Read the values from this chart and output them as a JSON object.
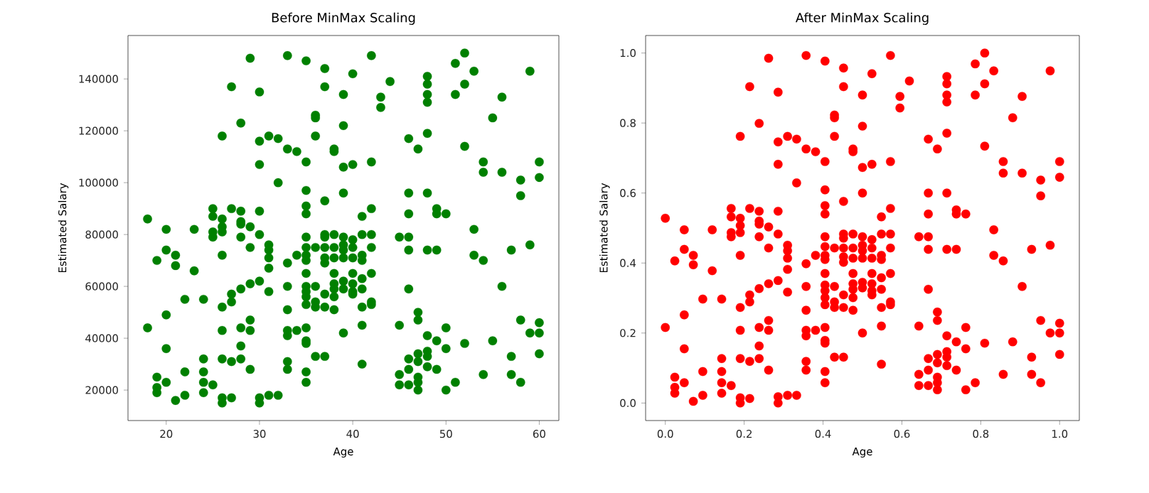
{
  "chart_data": [
    {
      "type": "scatter",
      "title": "Before MinMax Scaling",
      "xlabel": "Age",
      "ylabel": "Estimated Salary",
      "xlim": [
        15.9,
        62.1
      ],
      "ylim": [
        8250,
        156750
      ],
      "xticks": [
        20,
        30,
        40,
        50,
        60
      ],
      "yticks": [
        20000,
        40000,
        60000,
        80000,
        100000,
        120000,
        140000
      ],
      "marker": "circle",
      "series": [
        {
          "color": "#008000",
          "x": [
            18,
            18,
            19,
            19,
            19,
            19,
            20,
            20,
            20,
            20,
            20,
            21,
            21,
            21,
            22,
            22,
            22,
            23,
            23,
            24,
            24,
            24,
            24,
            24,
            25,
            25,
            25,
            25,
            25,
            26,
            26,
            26,
            26,
            26,
            26,
            26,
            26,
            26,
            26,
            27,
            27,
            27,
            27,
            27,
            27,
            28,
            28,
            28,
            28,
            28,
            28,
            28,
            28,
            28,
            29,
            29,
            29,
            29,
            29,
            29,
            29,
            30,
            30,
            30,
            30,
            30,
            30,
            30,
            30,
            31,
            31,
            31,
            31,
            31,
            31,
            31,
            32,
            32,
            32,
            33,
            33,
            33,
            33,
            33,
            33,
            33,
            33,
            33,
            34,
            34,
            34,
            35,
            35,
            35,
            35,
            35,
            35,
            35,
            35,
            35,
            35,
            35,
            35,
            35,
            35,
            35,
            35,
            35,
            35,
            35,
            36,
            36,
            36,
            36,
            36,
            36,
            36,
            36,
            37,
            37,
            37,
            37,
            37,
            37,
            37,
            37,
            37,
            37,
            37,
            38,
            38,
            38,
            38,
            38,
            38,
            38,
            38,
            38,
            38,
            39,
            39,
            39,
            39,
            39,
            39,
            39,
            39,
            39,
            39,
            39,
            40,
            40,
            40,
            40,
            40,
            40,
            40,
            40,
            40,
            41,
            41,
            41,
            41,
            41,
            41,
            41,
            41,
            41,
            42,
            42,
            42,
            42,
            42,
            42,
            42,
            42,
            43,
            43,
            44,
            45,
            45,
            45,
            45,
            46,
            46,
            46,
            46,
            46,
            46,
            46,
            46,
            46,
            47,
            47,
            47,
            47,
            47,
            47,
            47,
            47,
            48,
            48,
            48,
            48,
            48,
            48,
            48,
            48,
            48,
            48,
            48,
            49,
            49,
            49,
            49,
            49,
            50,
            50,
            50,
            50,
            51,
            51,
            51,
            52,
            52,
            52,
            52,
            53,
            53,
            53,
            54,
            54,
            54,
            54,
            55,
            55,
            56,
            56,
            56,
            57,
            57,
            57,
            58,
            58,
            58,
            58,
            59,
            59,
            59,
            60,
            60,
            60,
            60,
            60
          ],
          "values": [
            86000,
            44000,
            70000,
            25000,
            21000,
            19000,
            82000,
            74000,
            49000,
            36000,
            23000,
            72000,
            68000,
            16000,
            55000,
            27000,
            18000,
            82000,
            66000,
            55000,
            32000,
            27000,
            23000,
            19000,
            90000,
            87000,
            81000,
            79000,
            22000,
            118000,
            86000,
            83000,
            81000,
            72000,
            52000,
            43000,
            32000,
            17000,
            15000,
            137000,
            90000,
            57000,
            54000,
            31000,
            17000,
            123000,
            89000,
            85000,
            84000,
            79000,
            59000,
            44000,
            37000,
            32000,
            148000,
            83000,
            75000,
            61000,
            47000,
            43000,
            28000,
            135000,
            116000,
            107000,
            89000,
            80000,
            62000,
            17000,
            15000,
            118000,
            76000,
            74000,
            71000,
            67000,
            58000,
            18000,
            117000,
            100000,
            18000,
            149000,
            113000,
            69000,
            60000,
            51000,
            43000,
            41000,
            31000,
            28000,
            112000,
            72000,
            43000,
            147000,
            108000,
            97000,
            91000,
            88000,
            79000,
            75000,
            72000,
            70000,
            65000,
            60000,
            58000,
            56000,
            53000,
            44000,
            39000,
            38000,
            27000,
            23000,
            126000,
            125000,
            118000,
            75000,
            60000,
            54000,
            52000,
            33000,
            144000,
            137000,
            93000,
            80000,
            79000,
            75000,
            71000,
            69000,
            57000,
            52000,
            33000,
            113000,
            112000,
            80000,
            75000,
            71000,
            65000,
            61000,
            59000,
            56000,
            51000,
            134000,
            122000,
            106000,
            96000,
            79000,
            76000,
            74000,
            71000,
            62000,
            59000,
            42000,
            142000,
            107000,
            78000,
            75000,
            71000,
            65000,
            61000,
            58000,
            57000,
            87000,
            80000,
            72000,
            70000,
            63000,
            59000,
            52000,
            45000,
            30000,
            149000,
            108000,
            90000,
            80000,
            75000,
            65000,
            54000,
            53000,
            133000,
            129000,
            139000,
            79000,
            45000,
            26000,
            22000,
            117000,
            96000,
            88000,
            79000,
            74000,
            59000,
            32000,
            28000,
            22000,
            113000,
            50000,
            47000,
            34000,
            31000,
            25000,
            23000,
            20000,
            141000,
            138000,
            134000,
            131000,
            119000,
            96000,
            74000,
            41000,
            35000,
            33000,
            29000,
            90000,
            88000,
            74000,
            39000,
            28000,
            88000,
            44000,
            36000,
            20000,
            146000,
            134000,
            23000,
            150000,
            138000,
            114000,
            38000,
            143000,
            82000,
            72000,
            108000,
            104000,
            70000,
            26000,
            125000,
            39000,
            133000,
            104000,
            60000,
            74000,
            33000,
            26000,
            101000,
            95000,
            47000,
            23000,
            143000,
            76000,
            42000,
            108000,
            102000,
            46000,
            42000,
            34000
          ]
        }
      ]
    },
    {
      "type": "scatter",
      "title": "After MinMax Scaling",
      "xlabel": "Age",
      "ylabel": "Estimated Salary",
      "xlim": [
        -0.05,
        1.05
      ],
      "ylim": [
        -0.05,
        1.05
      ],
      "xticks": [
        {
          "value": 0,
          "label": "0.0"
        },
        {
          "value": 0.2,
          "label": "0.2"
        },
        {
          "value": 0.4,
          "label": "0.4"
        },
        {
          "value": 0.6,
          "label": "0.6"
        },
        {
          "value": 0.8,
          "label": "0.8"
        },
        {
          "value": 1,
          "label": "1.0"
        }
      ],
      "yticks": [
        {
          "value": 0,
          "label": "0.0"
        },
        {
          "value": 0.2,
          "label": "0.2"
        },
        {
          "value": 0.4,
          "label": "0.4"
        },
        {
          "value": 0.6,
          "label": "0.6"
        },
        {
          "value": 0.8,
          "label": "0.8"
        },
        {
          "value": 1,
          "label": "1.0"
        }
      ],
      "marker": "circle",
      "series": [
        {
          "color": "#ff0000",
          "x": [
            0,
            0,
            0.024,
            0.024,
            0.024,
            0.024,
            0.048,
            0.048,
            0.048,
            0.048,
            0.048,
            0.071,
            0.071,
            0.071,
            0.095,
            0.095,
            0.095,
            0.119,
            0.119,
            0.143,
            0.143,
            0.143,
            0.143,
            0.143,
            0.167,
            0.167,
            0.167,
            0.167,
            0.167,
            0.19,
            0.19,
            0.19,
            0.19,
            0.19,
            0.19,
            0.19,
            0.19,
            0.19,
            0.19,
            0.214,
            0.214,
            0.214,
            0.214,
            0.214,
            0.214,
            0.238,
            0.238,
            0.238,
            0.238,
            0.238,
            0.238,
            0.238,
            0.238,
            0.238,
            0.262,
            0.262,
            0.262,
            0.262,
            0.262,
            0.262,
            0.262,
            0.286,
            0.286,
            0.286,
            0.286,
            0.286,
            0.286,
            0.286,
            0.286,
            0.31,
            0.31,
            0.31,
            0.31,
            0.31,
            0.31,
            0.31,
            0.333,
            0.333,
            0.333,
            0.357,
            0.357,
            0.357,
            0.357,
            0.357,
            0.357,
            0.357,
            0.357,
            0.357,
            0.381,
            0.381,
            0.381,
            0.405,
            0.405,
            0.405,
            0.405,
            0.405,
            0.405,
            0.405,
            0.405,
            0.405,
            0.405,
            0.405,
            0.405,
            0.405,
            0.405,
            0.405,
            0.405,
            0.405,
            0.405,
            0.405,
            0.429,
            0.429,
            0.429,
            0.429,
            0.429,
            0.429,
            0.429,
            0.429,
            0.452,
            0.452,
            0.452,
            0.452,
            0.452,
            0.452,
            0.452,
            0.452,
            0.452,
            0.452,
            0.452,
            0.476,
            0.476,
            0.476,
            0.476,
            0.476,
            0.476,
            0.476,
            0.476,
            0.476,
            0.476,
            0.5,
            0.5,
            0.5,
            0.5,
            0.5,
            0.5,
            0.5,
            0.5,
            0.5,
            0.5,
            0.5,
            0.524,
            0.524,
            0.524,
            0.524,
            0.524,
            0.524,
            0.524,
            0.524,
            0.524,
            0.548,
            0.548,
            0.548,
            0.548,
            0.548,
            0.548,
            0.548,
            0.548,
            0.548,
            0.571,
            0.571,
            0.571,
            0.571,
            0.571,
            0.571,
            0.571,
            0.571,
            0.595,
            0.595,
            0.619,
            0.643,
            0.643,
            0.643,
            0.643,
            0.667,
            0.667,
            0.667,
            0.667,
            0.667,
            0.667,
            0.667,
            0.667,
            0.667,
            0.69,
            0.69,
            0.69,
            0.69,
            0.69,
            0.69,
            0.69,
            0.69,
            0.714,
            0.714,
            0.714,
            0.714,
            0.714,
            0.714,
            0.714,
            0.714,
            0.714,
            0.714,
            0.714,
            0.738,
            0.738,
            0.738,
            0.738,
            0.738,
            0.762,
            0.762,
            0.762,
            0.762,
            0.786,
            0.786,
            0.786,
            0.81,
            0.81,
            0.81,
            0.81,
            0.833,
            0.833,
            0.833,
            0.857,
            0.857,
            0.857,
            0.857,
            0.881,
            0.881,
            0.905,
            0.905,
            0.905,
            0.929,
            0.929,
            0.929,
            0.952,
            0.952,
            0.952,
            0.952,
            0.976,
            0.976,
            0.976,
            1,
            1,
            1,
            1,
            1
          ],
          "values": [
            0.528,
            0.216,
            0.406,
            0.074,
            0.045,
            0.028,
            0.495,
            0.439,
            0.252,
            0.155,
            0.058,
            0.422,
            0.395,
            0.005,
            0.297,
            0.09,
            0.022,
            0.495,
            0.378,
            0.297,
            0.127,
            0.09,
            0.058,
            0.028,
            0.556,
            0.532,
            0.487,
            0.475,
            0.05,
            0.762,
            0.528,
            0.507,
            0.487,
            0.422,
            0.273,
            0.208,
            0.127,
            0.015,
            0,
            0.904,
            0.556,
            0.309,
            0.289,
            0.119,
            0.013,
            0.799,
            0.548,
            0.52,
            0.511,
            0.475,
            0.327,
            0.216,
            0.163,
            0.127,
            0.985,
            0.503,
            0.443,
            0.341,
            0.236,
            0.208,
            0.094,
            0.888,
            0.746,
            0.682,
            0.548,
            0.483,
            0.35,
            0.018,
            0,
            0.762,
            0.451,
            0.435,
            0.414,
            0.382,
            0.317,
            0.022,
            0.754,
            0.629,
            0.022,
            0.993,
            0.726,
            0.398,
            0.333,
            0.265,
            0.208,
            0.192,
            0.119,
            0.094,
            0.718,
            0.422,
            0.208,
            0.977,
            0.69,
            0.609,
            0.564,
            0.54,
            0.475,
            0.447,
            0.422,
            0.41,
            0.37,
            0.337,
            0.321,
            0.301,
            0.281,
            0.216,
            0.179,
            0.171,
            0.09,
            0.058,
            0.823,
            0.815,
            0.762,
            0.443,
            0.333,
            0.289,
            0.273,
            0.131,
            0.957,
            0.904,
            0.576,
            0.483,
            0.471,
            0.443,
            0.418,
            0.402,
            0.309,
            0.273,
            0.131,
            0.726,
            0.718,
            0.483,
            0.443,
            0.414,
            0.37,
            0.341,
            0.325,
            0.301,
            0.265,
            0.88,
            0.791,
            0.673,
            0.6,
            0.475,
            0.451,
            0.435,
            0.414,
            0.345,
            0.329,
            0.2,
            0.941,
            0.682,
            0.467,
            0.443,
            0.414,
            0.37,
            0.341,
            0.321,
            0.309,
            0.532,
            0.483,
            0.422,
            0.41,
            0.358,
            0.325,
            0.273,
            0.22,
            0.111,
            0.993,
            0.69,
            0.556,
            0.483,
            0.443,
            0.37,
            0.289,
            0.281,
            0.876,
            0.843,
            0.92,
            0.475,
            0.22,
            0.082,
            0.05,
            0.754,
            0.6,
            0.54,
            0.475,
            0.439,
            0.325,
            0.127,
            0.094,
            0.05,
            0.726,
            0.26,
            0.236,
            0.139,
            0.115,
            0.074,
            0.058,
            0.038,
            0.933,
            0.912,
            0.88,
            0.86,
            0.771,
            0.6,
            0.439,
            0.192,
            0.147,
            0.131,
            0.107,
            0.552,
            0.54,
            0.439,
            0.175,
            0.094,
            0.54,
            0.216,
            0.155,
            0.038,
            0.969,
            0.88,
            0.058,
            1.0,
            0.912,
            0.734,
            0.171,
            0.949,
            0.495,
            0.422,
            0.69,
            0.657,
            0.406,
            0.082,
            0.815,
            0.175,
            0.876,
            0.657,
            0.333,
            0.439,
            0.131,
            0.082,
            0.637,
            0.592,
            0.236,
            0.058,
            0.949,
            0.451,
            0.2,
            0.69,
            0.645,
            0.228,
            0.2,
            0.139
          ]
        }
      ]
    }
  ]
}
